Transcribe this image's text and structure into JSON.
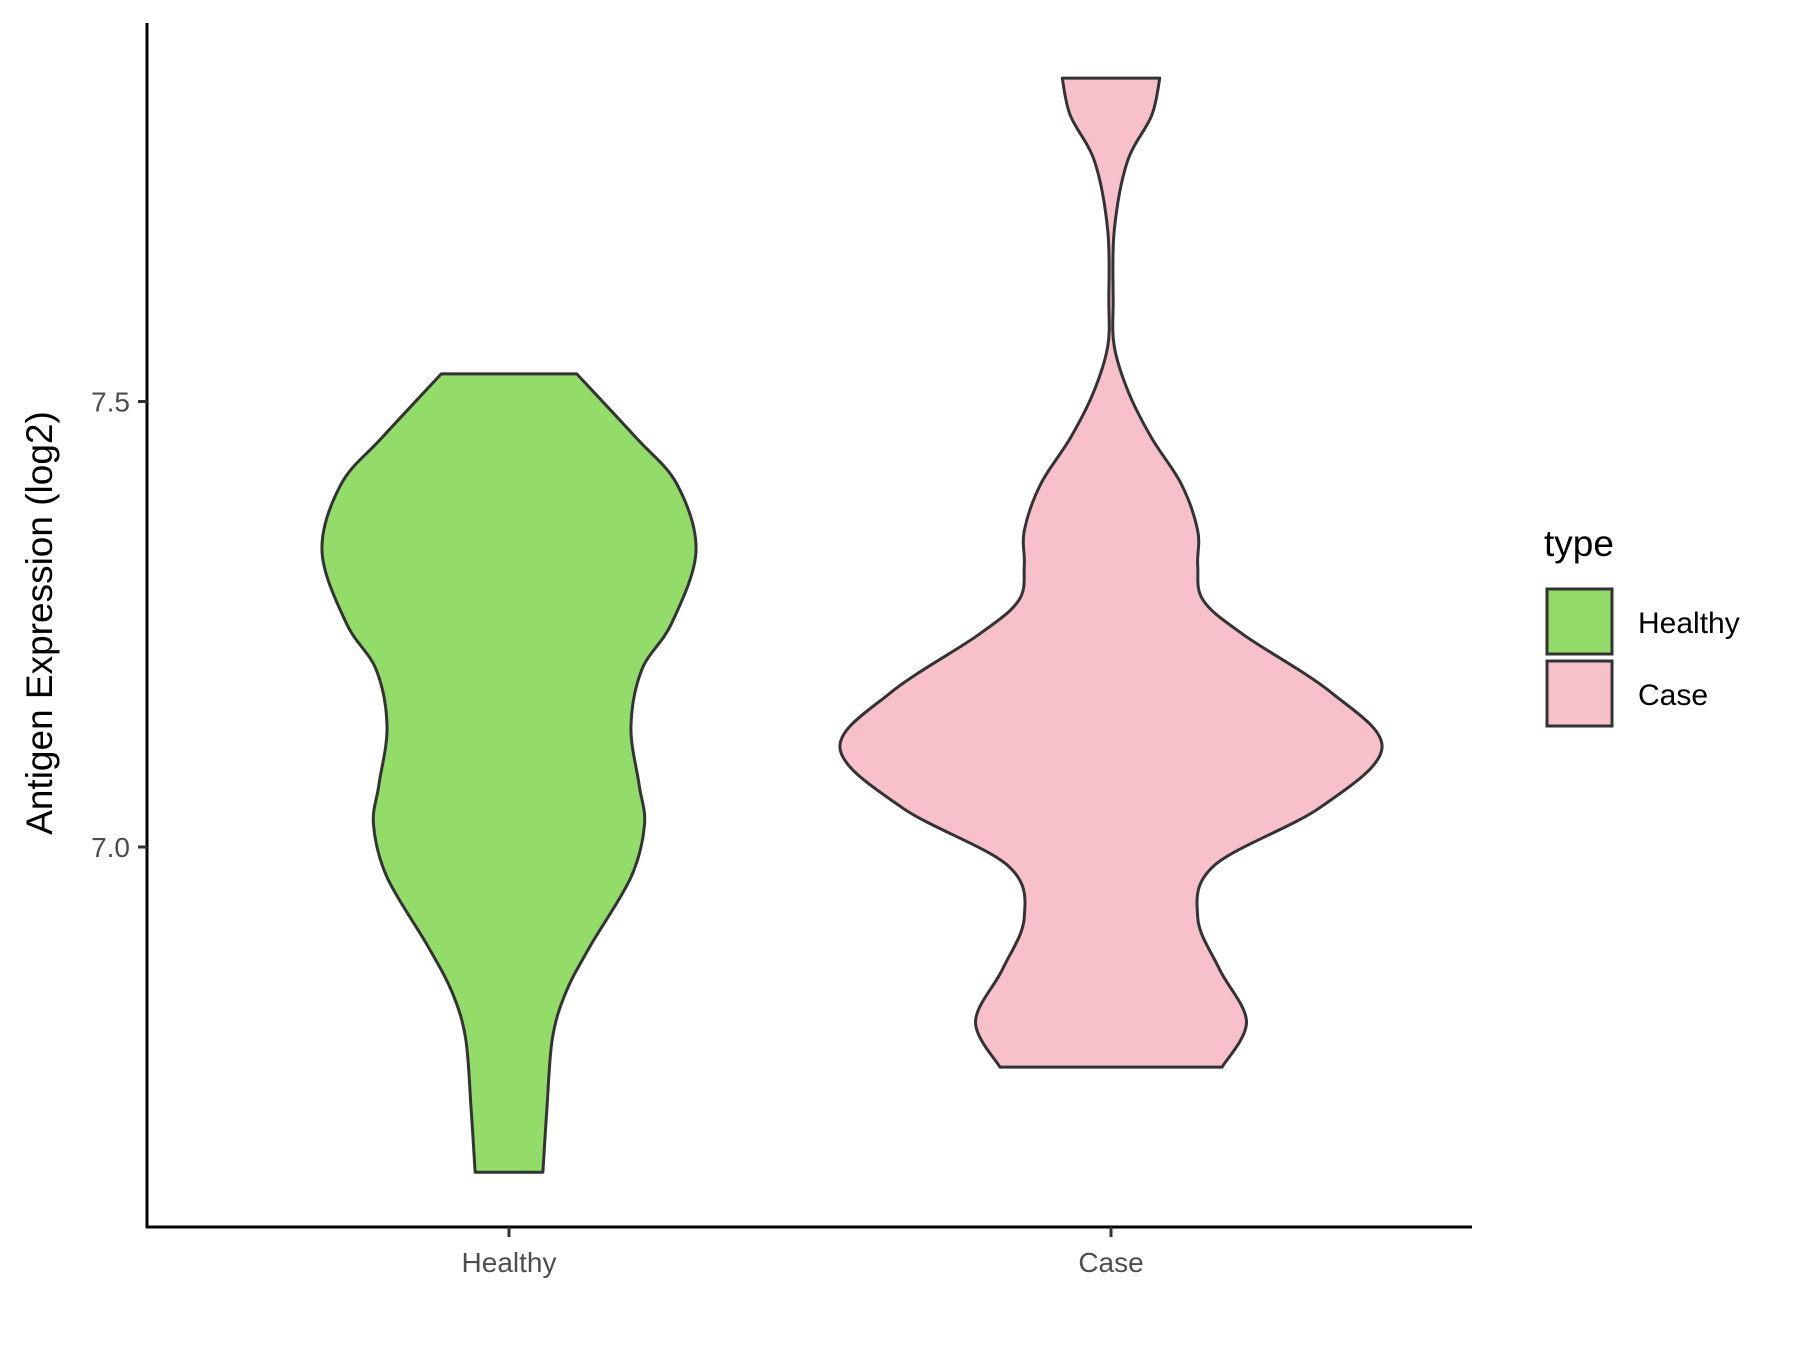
{
  "chart_data": {
    "type": "violin",
    "title": "",
    "xlabel": "",
    "ylabel": "Antigen Expression (log2)",
    "ylim": [
      6.574,
      7.925
    ],
    "yticks": [
      {
        "value": 7.0,
        "label": "7.0"
      },
      {
        "value": 7.5,
        "label": "7.5"
      }
    ],
    "categories": [
      "Healthy",
      "Case"
    ],
    "grid": false,
    "legend": {
      "title": "type",
      "placement": "right"
    },
    "series": [
      {
        "name": "Healthy",
        "color": "#93DC6A",
        "min": 6.635,
        "max": 7.531,
        "density_profile": [
          [
            7.531,
            0.25
          ],
          [
            7.459,
            0.47
          ],
          [
            7.407,
            0.62
          ],
          [
            7.332,
            0.69
          ],
          [
            7.251,
            0.6
          ],
          [
            7.199,
            0.49
          ],
          [
            7.135,
            0.45
          ],
          [
            7.07,
            0.48
          ],
          [
            7.025,
            0.5
          ],
          [
            6.966,
            0.45
          ],
          [
            6.889,
            0.3
          ],
          [
            6.837,
            0.21
          ],
          [
            6.785,
            0.16
          ],
          [
            6.707,
            0.14
          ],
          [
            6.635,
            0.125
          ]
        ]
      },
      {
        "name": "Case",
        "color": "#F7C0CB",
        "min": 6.753,
        "max": 7.863,
        "density_profile": [
          [
            7.863,
            0.18
          ],
          [
            7.821,
            0.15
          ],
          [
            7.769,
            0.06
          ],
          [
            7.692,
            0.012
          ],
          [
            7.614,
            0.008
          ],
          [
            7.562,
            0.012
          ],
          [
            7.51,
            0.065
          ],
          [
            7.459,
            0.15
          ],
          [
            7.407,
            0.26
          ],
          [
            7.355,
            0.32
          ],
          [
            7.316,
            0.32
          ],
          [
            7.277,
            0.34
          ],
          [
            7.238,
            0.49
          ],
          [
            7.174,
            0.81
          ],
          [
            7.111,
            1.0
          ],
          [
            7.044,
            0.77
          ],
          [
            6.979,
            0.38
          ],
          [
            6.921,
            0.32
          ],
          [
            6.863,
            0.4
          ],
          [
            6.804,
            0.5
          ],
          [
            6.753,
            0.41
          ]
        ]
      }
    ]
  }
}
